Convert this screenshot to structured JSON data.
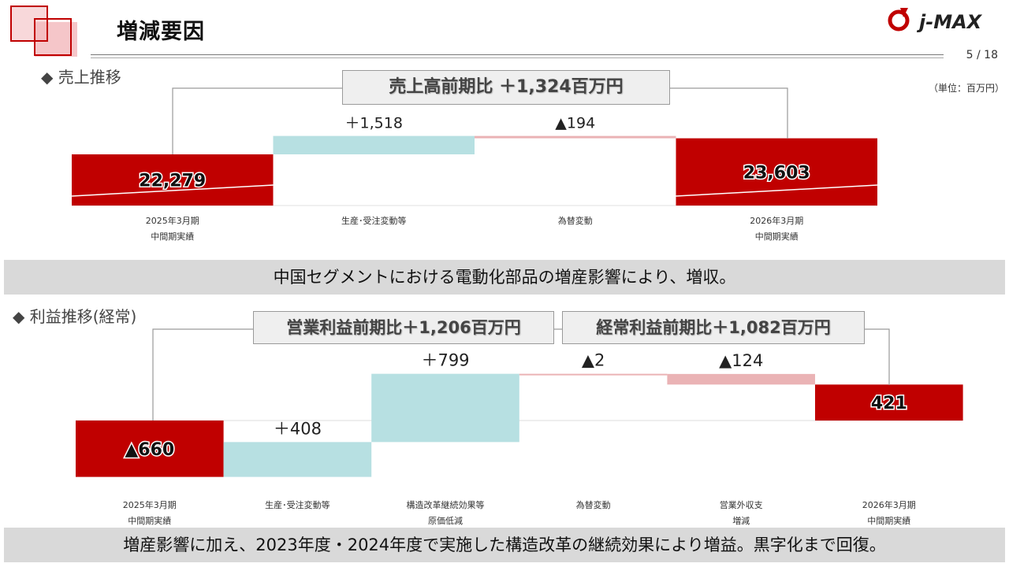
{
  "header": {
    "title": "増減要因",
    "page": "5 / 18",
    "unit": "（単位：百万円）",
    "logo_text": "j-MAX",
    "brand_color": "#c00000"
  },
  "sales_section": {
    "heading": "◆ 売上推移",
    "callout": "売上高前期比 ＋1,324百万円",
    "summary": "中国セグメントにおける電動化部品の増産影響により、増収。"
  },
  "profit_section": {
    "heading": "◆ 利益推移(経常)",
    "callout_operating": "営業利益前期比＋1,206百万円",
    "callout_ordinary": "経常利益前期比＋1,082百万円",
    "summary": "増産影響に加え、2023年度・2024年度で実施した構造改革の継続効果により増益。黒字化まで回復。"
  },
  "chart_data": [
    {
      "type": "bar",
      "subtype": "waterfall",
      "categories": [
        "2025年3月期\n中間期実績",
        "生産･受注変動等",
        "為替変動",
        "2026年3月期\n中間期実績"
      ],
      "values": [
        22279,
        1518,
        -194,
        23603
      ],
      "kinds": [
        "total",
        "increase",
        "decrease",
        "total"
      ],
      "labels": [
        "22,279",
        "＋1,518",
        "▲194",
        "23,603"
      ],
      "colors": {
        "total": "#c00000",
        "increase": "#b7e0e2",
        "decrease": "#eab3b5"
      }
    },
    {
      "type": "bar",
      "subtype": "waterfall",
      "categories": [
        "2025年3月期\n中間期実績",
        "生産･受注変動等",
        "構造改革継続効果等\n原価低減",
        "為替変動",
        "営業外収支\n増減",
        "2026年3月期\n中間期実績"
      ],
      "values": [
        -660,
        408,
        799,
        -2,
        -124,
        421
      ],
      "kinds": [
        "total",
        "increase",
        "increase",
        "decrease",
        "decrease",
        "total"
      ],
      "labels": [
        "▲660",
        "＋408",
        "＋799",
        "▲2",
        "▲124",
        "421"
      ],
      "colors": {
        "total": "#c00000",
        "increase": "#b7e0e2",
        "decrease": "#eab3b5"
      }
    }
  ]
}
